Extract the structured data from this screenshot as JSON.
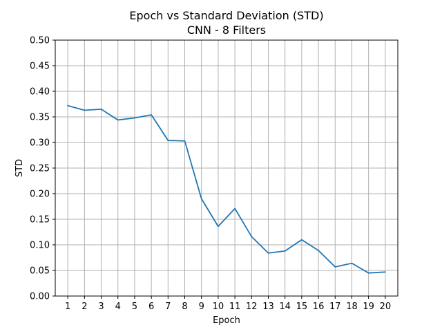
{
  "chart_data": {
    "type": "line",
    "title": "Epoch vs Standard Deviation (STD)",
    "subtitle": "CNN - 8 Filters",
    "xlabel": "Epoch",
    "ylabel": "STD",
    "x": [
      1,
      2,
      3,
      4,
      5,
      6,
      7,
      8,
      9,
      10,
      11,
      12,
      13,
      14,
      15,
      16,
      17,
      18,
      19,
      20
    ],
    "series": [
      {
        "values": [
          0.372,
          0.363,
          0.365,
          0.344,
          0.348,
          0.354,
          0.304,
          0.303,
          0.19,
          0.136,
          0.171,
          0.116,
          0.084,
          0.088,
          0.11,
          0.089,
          0.057,
          0.064,
          0.045,
          0.047
        ],
        "color": "#1f77b4"
      }
    ],
    "xlim": [
      0.25,
      20.75
    ],
    "ylim": [
      0,
      0.5
    ],
    "xticks": [
      "1",
      "2",
      "3",
      "4",
      "5",
      "6",
      "7",
      "8",
      "9",
      "10",
      "11",
      "12",
      "13",
      "14",
      "15",
      "16",
      "17",
      "18",
      "19",
      "20"
    ],
    "yticks": [
      "0.00",
      "0.05",
      "0.10",
      "0.15",
      "0.20",
      "0.25",
      "0.30",
      "0.35",
      "0.40",
      "0.45",
      "0.50"
    ],
    "grid": true,
    "legend": "none"
  }
}
